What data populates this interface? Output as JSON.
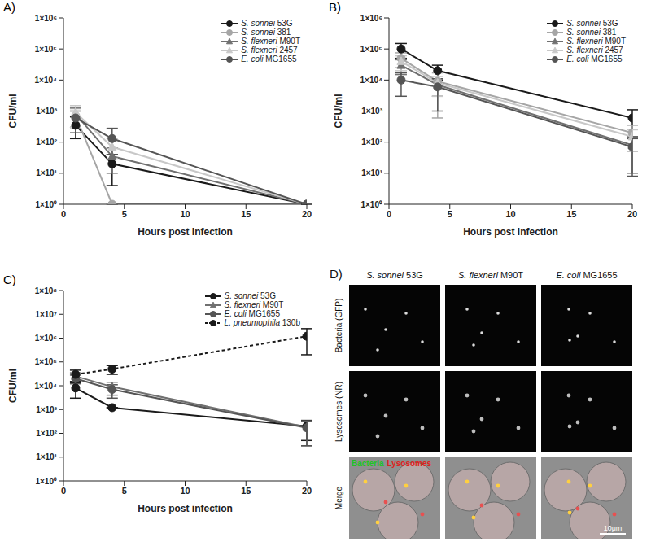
{
  "chart_data": [
    {
      "type": "line",
      "panel": "A)",
      "x_label": "Hours post infection",
      "y_label": "CFU/ml",
      "log": "y",
      "grid": false,
      "legend": "upper right",
      "x": [
        1,
        4,
        20
      ],
      "xlim": [
        0,
        20
      ],
      "xticks": [
        0,
        5,
        10,
        15,
        20
      ],
      "ylim": [
        1,
        1000000
      ],
      "yticks": [
        {
          "value": 1,
          "label": "1×10⁰"
        },
        {
          "value": 10,
          "label": "1×10¹"
        },
        {
          "value": 100,
          "label": "1×10²"
        },
        {
          "value": 1000,
          "label": "1×10³"
        },
        {
          "value": 10000,
          "label": "1×10⁴"
        },
        {
          "value": 100000,
          "label": "1×10⁵"
        },
        {
          "value": 1000000,
          "label": "1×10⁶"
        }
      ],
      "series": [
        {
          "name": "S. sonnei 53G",
          "color": "#1a1a1a",
          "marker": "circle",
          "line_style": "solid",
          "values": [
            350,
            20,
            1
          ],
          "errors": [
            [
              220,
              300
            ],
            [
              16,
              20
            ],
            [
              0,
              0
            ]
          ]
        },
        {
          "name": "S. sonnei 381",
          "color": "#a6a6a6",
          "marker": "circle",
          "line_style": "solid",
          "values": [
            700,
            1,
            1
          ],
          "errors": [
            [
              400,
              500
            ],
            [
              0,
              0
            ],
            [
              0,
              0
            ]
          ]
        },
        {
          "name": "S. flexneri M90T",
          "color": "#707070",
          "marker": "triangle",
          "line_style": "solid",
          "values": [
            800,
            35,
            1
          ],
          "errors": [
            [
              500,
              500
            ],
            [
              25,
              30
            ],
            [
              0,
              0
            ]
          ]
        },
        {
          "name": "S. flexneri 2457",
          "color": "#c8c8c8",
          "marker": "triangle",
          "line_style": "solid",
          "values": [
            900,
            70,
            1
          ],
          "errors": [
            [
              600,
              600
            ],
            [
              40,
              60
            ],
            [
              0,
              0
            ]
          ]
        },
        {
          "name": "E. coli MG1655",
          "color": "#555555",
          "marker": "circle",
          "line_style": "solid",
          "values": [
            600,
            130,
            1
          ],
          "errors": [
            [
              400,
              400
            ],
            [
              90,
              150
            ],
            [
              0,
              0
            ]
          ]
        }
      ]
    },
    {
      "type": "line",
      "panel": "B)",
      "x_label": "Hours post infection",
      "y_label": "CFU/ml",
      "log": "y",
      "grid": false,
      "legend": "upper right",
      "x": [
        1,
        4,
        20
      ],
      "xlim": [
        0,
        20
      ],
      "xticks": [
        0,
        5,
        10,
        15,
        20
      ],
      "ylim": [
        1,
        1000000
      ],
      "yticks": [
        {
          "value": 1,
          "label": "1×10⁰"
        },
        {
          "value": 10,
          "label": "1×10¹"
        },
        {
          "value": 100,
          "label": "1×10²"
        },
        {
          "value": 1000,
          "label": "1×10³"
        },
        {
          "value": 10000,
          "label": "1×10⁴"
        },
        {
          "value": 100000,
          "label": "1×10⁵"
        },
        {
          "value": 1000000,
          "label": "1×10⁶"
        }
      ],
      "series": [
        {
          "name": "S. sonnei 53G",
          "color": "#1a1a1a",
          "marker": "circle",
          "line_style": "solid",
          "values": [
            100000,
            20000,
            600
          ],
          "errors": [
            [
              50000,
              50000
            ],
            [
              10000,
              10000
            ],
            [
              450,
              500
            ]
          ]
        },
        {
          "name": "S. sonnei 381",
          "color": "#a6a6a6",
          "marker": "circle",
          "line_style": "solid",
          "values": [
            50000,
            9000,
            200
          ],
          "errors": [
            [
              25000,
              25000
            ],
            [
              8400,
              8000
            ],
            [
              150,
              150
            ]
          ]
        },
        {
          "name": "S. flexneri M90T",
          "color": "#707070",
          "marker": "triangle",
          "line_style": "solid",
          "values": [
            30000,
            7000,
            80
          ],
          "errors": [
            [
              15000,
              15000
            ],
            [
              4000,
              4000
            ],
            [
              70,
              70
            ]
          ]
        },
        {
          "name": "S. flexneri 2457",
          "color": "#c8c8c8",
          "marker": "triangle",
          "line_style": "solid",
          "values": [
            40000,
            8000,
            150
          ],
          "errors": [
            [
              20000,
              20000
            ],
            [
              5000,
              5000
            ],
            [
              100,
              100
            ]
          ]
        },
        {
          "name": "E. coli MG1655",
          "color": "#555555",
          "marker": "circle",
          "line_style": "solid",
          "values": [
            10000,
            6000,
            70
          ],
          "errors": [
            [
              7000,
              7000
            ],
            [
              5000,
              5000
            ],
            [
              62,
              60
            ]
          ]
        }
      ]
    },
    {
      "type": "line",
      "panel": "C)",
      "x_label": "Hours post infection",
      "y_label": "CFU/ml",
      "log": "y",
      "grid": false,
      "legend": "upper right",
      "x": [
        1,
        4,
        20
      ],
      "xlim": [
        0,
        20
      ],
      "xticks": [
        0,
        5,
        10,
        15,
        20
      ],
      "ylim": [
        1,
        100000000
      ],
      "yticks": [
        {
          "value": 1,
          "label": "1×10⁰"
        },
        {
          "value": 10,
          "label": "1×10¹"
        },
        {
          "value": 100,
          "label": "1×10²"
        },
        {
          "value": 1000,
          "label": "1×10³"
        },
        {
          "value": 10000,
          "label": "1×10⁴"
        },
        {
          "value": 100000,
          "label": "1×10⁵"
        },
        {
          "value": 1000000,
          "label": "1×10⁶"
        },
        {
          "value": 10000000,
          "label": "1×10⁷"
        },
        {
          "value": 100000000,
          "label": "1×10⁸"
        }
      ],
      "series": [
        {
          "name": "S. sonnei 53G",
          "color": "#1a1a1a",
          "marker": "circle",
          "line_style": "solid",
          "values": [
            8000,
            1200,
            200
          ],
          "errors": [
            [
              5000,
              5000
            ],
            [
              0,
              0
            ],
            [
              150,
              150
            ]
          ]
        },
        {
          "name": "S. flexneri M90T",
          "color": "#707070",
          "marker": "triangle",
          "line_style": "solid",
          "values": [
            25000,
            9000,
            180
          ],
          "errors": [
            [
              10000,
              10000
            ],
            [
              5000,
              5000
            ],
            [
              150,
              150
            ]
          ]
        },
        {
          "name": "E. coli MG1655",
          "color": "#555555",
          "marker": "circle",
          "line_style": "solid",
          "values": [
            20000,
            7000,
            170
          ],
          "errors": [
            [
              8000,
              8000
            ],
            [
              4000,
              4000
            ],
            [
              140,
              140
            ]
          ]
        },
        {
          "name": "L. pneumophila 130b",
          "color": "#1a1a1a",
          "marker": "circle",
          "line_style": "dashed",
          "values": [
            30000,
            50000,
            1200000
          ],
          "errors": [
            [
              15000,
              15000
            ],
            [
              20000,
              20000
            ],
            [
              1000000,
              1300000
            ]
          ]
        }
      ]
    }
  ],
  "image_panel": {
    "panel": "D)",
    "columns": [
      "S. sonnei 53G",
      "S. flexneri M90T",
      "E. coli MG1655"
    ],
    "rows": [
      "Bacteria (GFP)",
      "Lysosomes (NR)",
      "Merge"
    ],
    "merge_legend": [
      {
        "text": "Bacteria",
        "color": "#22c322"
      },
      {
        "text": "Lysosomes",
        "color": "#e02020"
      }
    ],
    "scale_bar": "10μm"
  }
}
